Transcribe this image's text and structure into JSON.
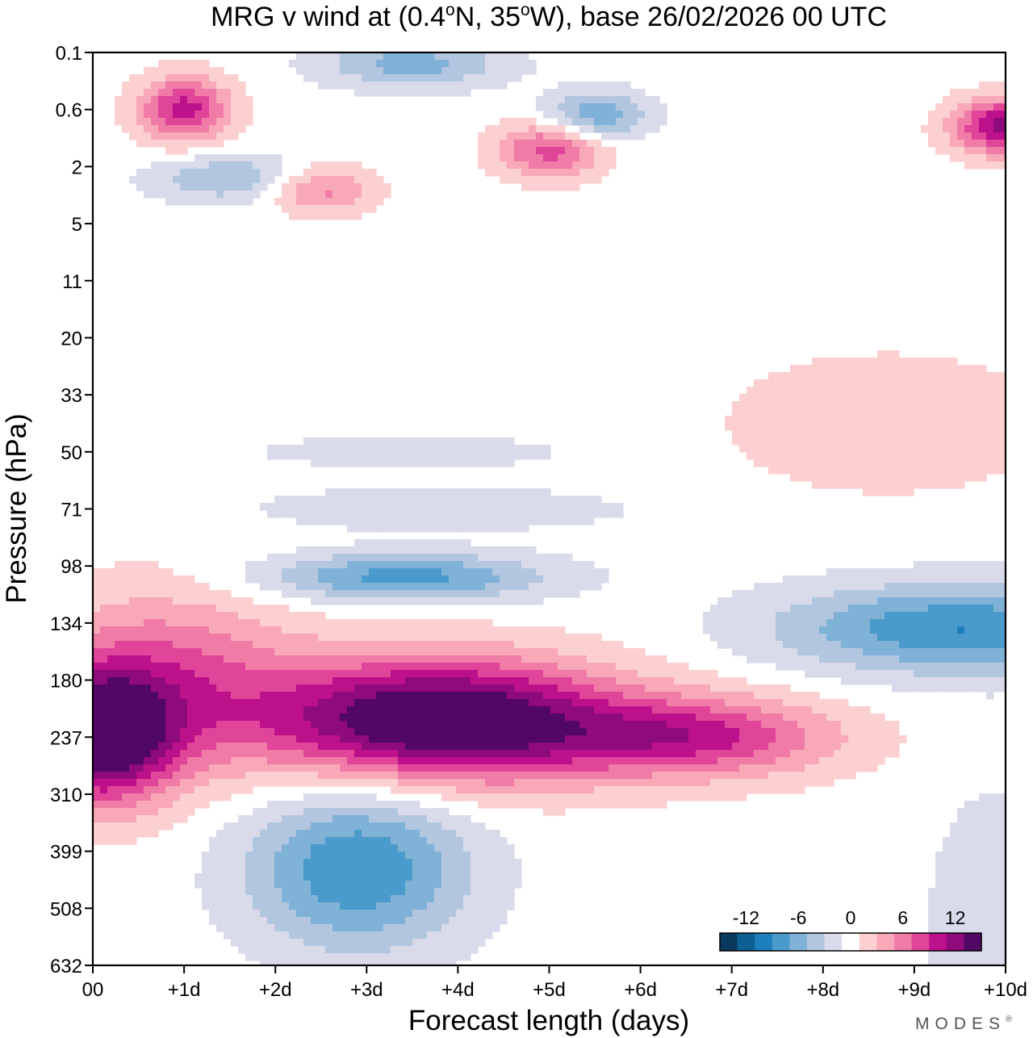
{
  "chart_data": {
    "type": "heatmap",
    "title": {
      "prefix": "MRG v wind at (0.4",
      "deg1": "o",
      "mid": "N, 35",
      "deg2": "o",
      "suffix": "W),  base 26/02/2026  00 UTC"
    },
    "xlabel": "Forecast length (days)",
    "ylabel": "Pressure (hPa)",
    "xlim": [
      0,
      10
    ],
    "x_ticks": [
      {
        "value": 0,
        "label": "00"
      },
      {
        "value": 1,
        "label": "+1d"
      },
      {
        "value": 2,
        "label": "+2d"
      },
      {
        "value": 3,
        "label": "+3d"
      },
      {
        "value": 4,
        "label": "+4d"
      },
      {
        "value": 5,
        "label": "+5d"
      },
      {
        "value": 6,
        "label": "+6d"
      },
      {
        "value": 7,
        "label": "+7d"
      },
      {
        "value": 8,
        "label": "+8d"
      },
      {
        "value": 9,
        "label": "+9d"
      },
      {
        "value": 10,
        "label": "+10d"
      }
    ],
    "y_levels_hpa": [
      "0.1",
      "0.6",
      "2",
      "5",
      "11",
      "20",
      "33",
      "50",
      "71",
      "98",
      "134",
      "180",
      "237",
      "310",
      "399",
      "508",
      "632"
    ],
    "contour_levels": [
      -14,
      -12,
      -10,
      -8,
      -6,
      -4,
      -2,
      0,
      2,
      4,
      6,
      8,
      10,
      12,
      14
    ],
    "colors": [
      "#093a5e",
      "#0d5f94",
      "#1e7fbd",
      "#4a9acb",
      "#7fb2d6",
      "#b3c6e0",
      "#d9dbeb",
      "#ffffff",
      "#fcd0d1",
      "#f8a8b8",
      "#f07ba6",
      "#e0459a",
      "#bc118a",
      "#8f0a7d",
      "#520766"
    ],
    "colorbar_labels": [
      {
        "value": -12,
        "label": "-12"
      },
      {
        "value": -6,
        "label": "-6"
      },
      {
        "value": 0,
        "label": "0"
      },
      {
        "value": 6,
        "label": "6"
      },
      {
        "value": 12,
        "label": "12"
      }
    ],
    "features": [
      {
        "name": "upper-trop-positive-max",
        "t": 3.8,
        "level_index": 11.7,
        "amplitude": 17,
        "width_days": 1.35,
        "width_levels": 0.75
      },
      {
        "name": "upper-trop-positive-tail",
        "t": 6.6,
        "level_index": 12.0,
        "amplitude": 9,
        "width_days": 1.1,
        "width_levels": 0.5
      },
      {
        "name": "day0-positive-max",
        "t": 0.1,
        "level_index": 12.0,
        "amplitude": 15,
        "width_days": 0.55,
        "width_levels": 0.8
      },
      {
        "name": "day0-positive-broad",
        "t": 0.8,
        "level_index": 11.0,
        "amplitude": 7,
        "width_days": 1.0,
        "width_levels": 1.1
      },
      {
        "name": "midtrop-negative",
        "t": 2.9,
        "level_index": 14.3,
        "amplitude": -9,
        "width_days": 0.85,
        "width_levels": 1.0
      },
      {
        "name": "trop-negative-band",
        "t": 3.4,
        "level_index": 9.2,
        "amplitude": -8,
        "width_days": 1.1,
        "width_levels": 0.3
      },
      {
        "name": "late-negative",
        "t": 9.5,
        "level_index": 10.1,
        "amplitude": -9,
        "width_days": 1.4,
        "width_levels": 0.55
      },
      {
        "name": "late-lower-negative",
        "t": 9.9,
        "level_index": 15.3,
        "amplitude": -3,
        "width_days": 0.5,
        "width_levels": 1.6
      },
      {
        "name": "strat-positive-patch",
        "t": 8.7,
        "level_index": 6.5,
        "amplitude": 2.5,
        "width_days": 1.3,
        "width_levels": 0.9
      },
      {
        "name": "strat-negative-band-71",
        "t": 3.8,
        "level_index": 8.0,
        "amplitude": -3,
        "width_days": 1.4,
        "width_levels": 0.25
      },
      {
        "name": "strat-negative-band-50",
        "t": 3.5,
        "level_index": 7.0,
        "amplitude": -2.5,
        "width_days": 1.2,
        "width_levels": 0.2
      },
      {
        "name": "upper-positive-1",
        "t": 1.0,
        "level_index": 1.0,
        "amplitude": 10,
        "width_days": 0.35,
        "width_levels": 0.4
      },
      {
        "name": "upper-positive-2",
        "t": 5.0,
        "level_index": 1.7,
        "amplitude": 8,
        "width_days": 0.4,
        "width_levels": 0.35
      },
      {
        "name": "upper-positive-3",
        "t": 2.5,
        "level_index": 2.4,
        "amplitude": 6,
        "width_days": 0.4,
        "width_levels": 0.3
      },
      {
        "name": "upper-negative-1",
        "t": 3.5,
        "level_index": 0.2,
        "amplitude": -6,
        "width_days": 0.7,
        "width_levels": 0.3
      },
      {
        "name": "upper-negative-2",
        "t": 5.5,
        "level_index": 1.1,
        "amplitude": -7,
        "width_days": 0.4,
        "width_levels": 0.3
      },
      {
        "name": "upper-negative-3",
        "t": 1.5,
        "level_index": 2.2,
        "amplitude": -5,
        "width_days": 0.6,
        "width_levels": 0.3
      },
      {
        "name": "top-right-positive",
        "t": 10.0,
        "level_index": 1.3,
        "amplitude": 12,
        "width_days": 0.4,
        "width_levels": 0.35
      }
    ],
    "grid": false,
    "colorbar_position": "bottom-right"
  },
  "brand": "MODES",
  "brand_mark": "®"
}
